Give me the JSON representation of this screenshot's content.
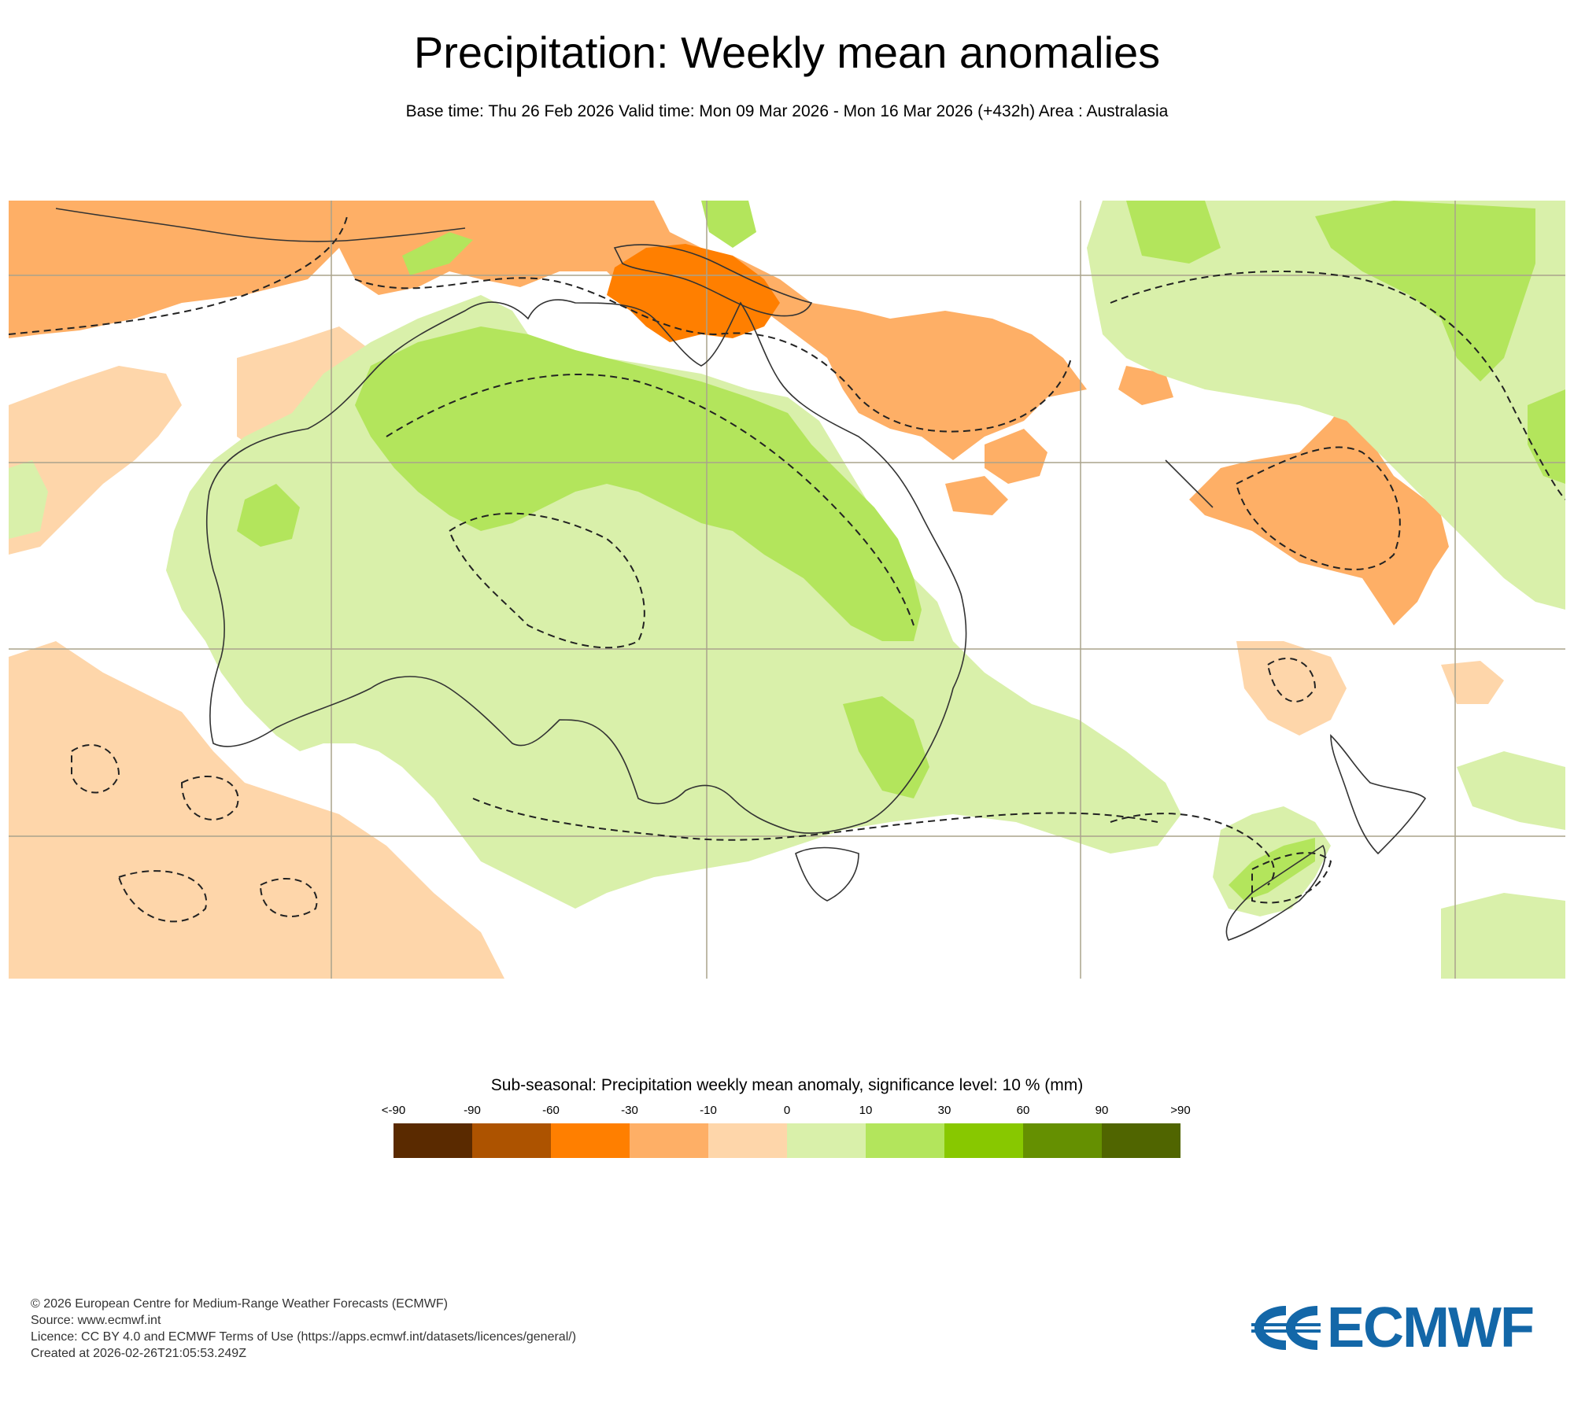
{
  "header": {
    "title": "Precipitation: Weekly mean anomalies",
    "subtitle": "Base time: Thu 26 Feb 2026 Valid time: Mon 09 Mar 2026 - Mon 16 Mar 2026 (+432h) Area : Australasia"
  },
  "map": {
    "area": "Australasia",
    "land_outline_color": "#333333",
    "grid_color": "#aaa38c",
    "significance_contour": "dashed"
  },
  "legend": {
    "title": "Sub-seasonal: Precipitation weekly mean anomaly, significance level: 10 % (mm)",
    "ticks": [
      "<-90",
      "-90",
      "-60",
      "-30",
      "-10",
      "0",
      "10",
      "30",
      "60",
      "90",
      ">90"
    ],
    "colors": [
      "#5a2a00",
      "#ad5300",
      "#ff7f00",
      "#feaf66",
      "#fed6aa",
      "#d9f0aa",
      "#b3e55c",
      "#88c800",
      "#659001",
      "#506500"
    ]
  },
  "footer": {
    "line1": "© 2026 European Centre for Medium-Range Weather Forecasts (ECMWF)",
    "line2": "Source: www.ecmwf.int",
    "line3": "Licence: CC BY 4.0 and ECMWF Terms of Use (https://apps.ecmwf.int/datasets/licences/general/)",
    "line4": "Created at 2026-02-26T21:05:53.249Z"
  },
  "logo": {
    "text": "ECMWF",
    "color": "#1367a8"
  }
}
